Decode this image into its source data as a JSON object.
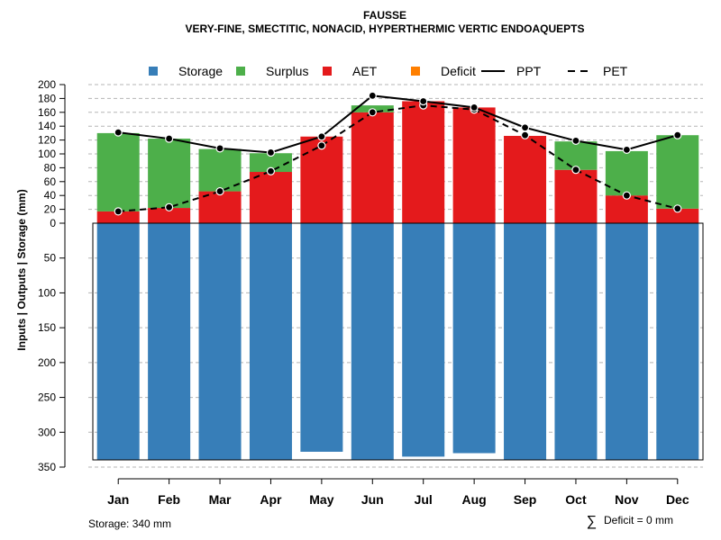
{
  "chart_data": {
    "type": "bar",
    "title": "FAUSSE",
    "subtitle": "VERY-FINE, SMECTITIC, NONACID, HYPERTHERMIC VERTIC ENDOAQUEPTS",
    "ylabel": "Inputs | Outputs | Storage     (mm)",
    "ylim_top": [
      0,
      200
    ],
    "ylim_bottom": [
      0,
      350
    ],
    "y_ticks_top": [
      "0",
      "20",
      "40",
      "60",
      "80",
      "100",
      "120",
      "140",
      "160",
      "180",
      "200"
    ],
    "y_ticks_bottom": [
      "50",
      "100",
      "150",
      "200",
      "250",
      "300",
      "350"
    ],
    "categories": [
      "Jan",
      "Feb",
      "Mar",
      "Apr",
      "May",
      "Jun",
      "Jul",
      "Aug",
      "Sep",
      "Oct",
      "Nov",
      "Dec"
    ],
    "series": [
      {
        "name": "Storage",
        "color": "#377EB8",
        "values": [
          340,
          340,
          340,
          340,
          328,
          340,
          335,
          330,
          340,
          340,
          340,
          340
        ]
      },
      {
        "name": "Surplus",
        "color": "#4DAF4A",
        "values": [
          113,
          100,
          61,
          27,
          0,
          10,
          0,
          0,
          0,
          41,
          64,
          106
        ]
      },
      {
        "name": "AET",
        "color": "#E41A1C",
        "values": [
          17,
          22,
          46,
          74,
          125,
          160,
          176,
          167,
          126,
          77,
          40,
          21
        ]
      },
      {
        "name": "Deficit",
        "color": "#FF7F00",
        "values": [
          0,
          0,
          0,
          0,
          0,
          0,
          0,
          0,
          0,
          0,
          0,
          0
        ]
      },
      {
        "name": "PPT",
        "style": "solid",
        "values": [
          131,
          122,
          108,
          102,
          125,
          184,
          176,
          167,
          138,
          119,
          106,
          127
        ]
      },
      {
        "name": "PET",
        "style": "dashed",
        "values": [
          17,
          23,
          46,
          75,
          112,
          160,
          170,
          164,
          127,
          77,
          40,
          21
        ]
      }
    ],
    "legend": [
      "Storage",
      "Surplus",
      "AET",
      "Deficit",
      "PPT",
      "PET"
    ],
    "legend_position": "top",
    "grid": true
  },
  "footer": {
    "storage_note": "Storage: 340 mm",
    "deficit_symbol": "∑",
    "deficit_note": "Deficit = 0 mm"
  }
}
